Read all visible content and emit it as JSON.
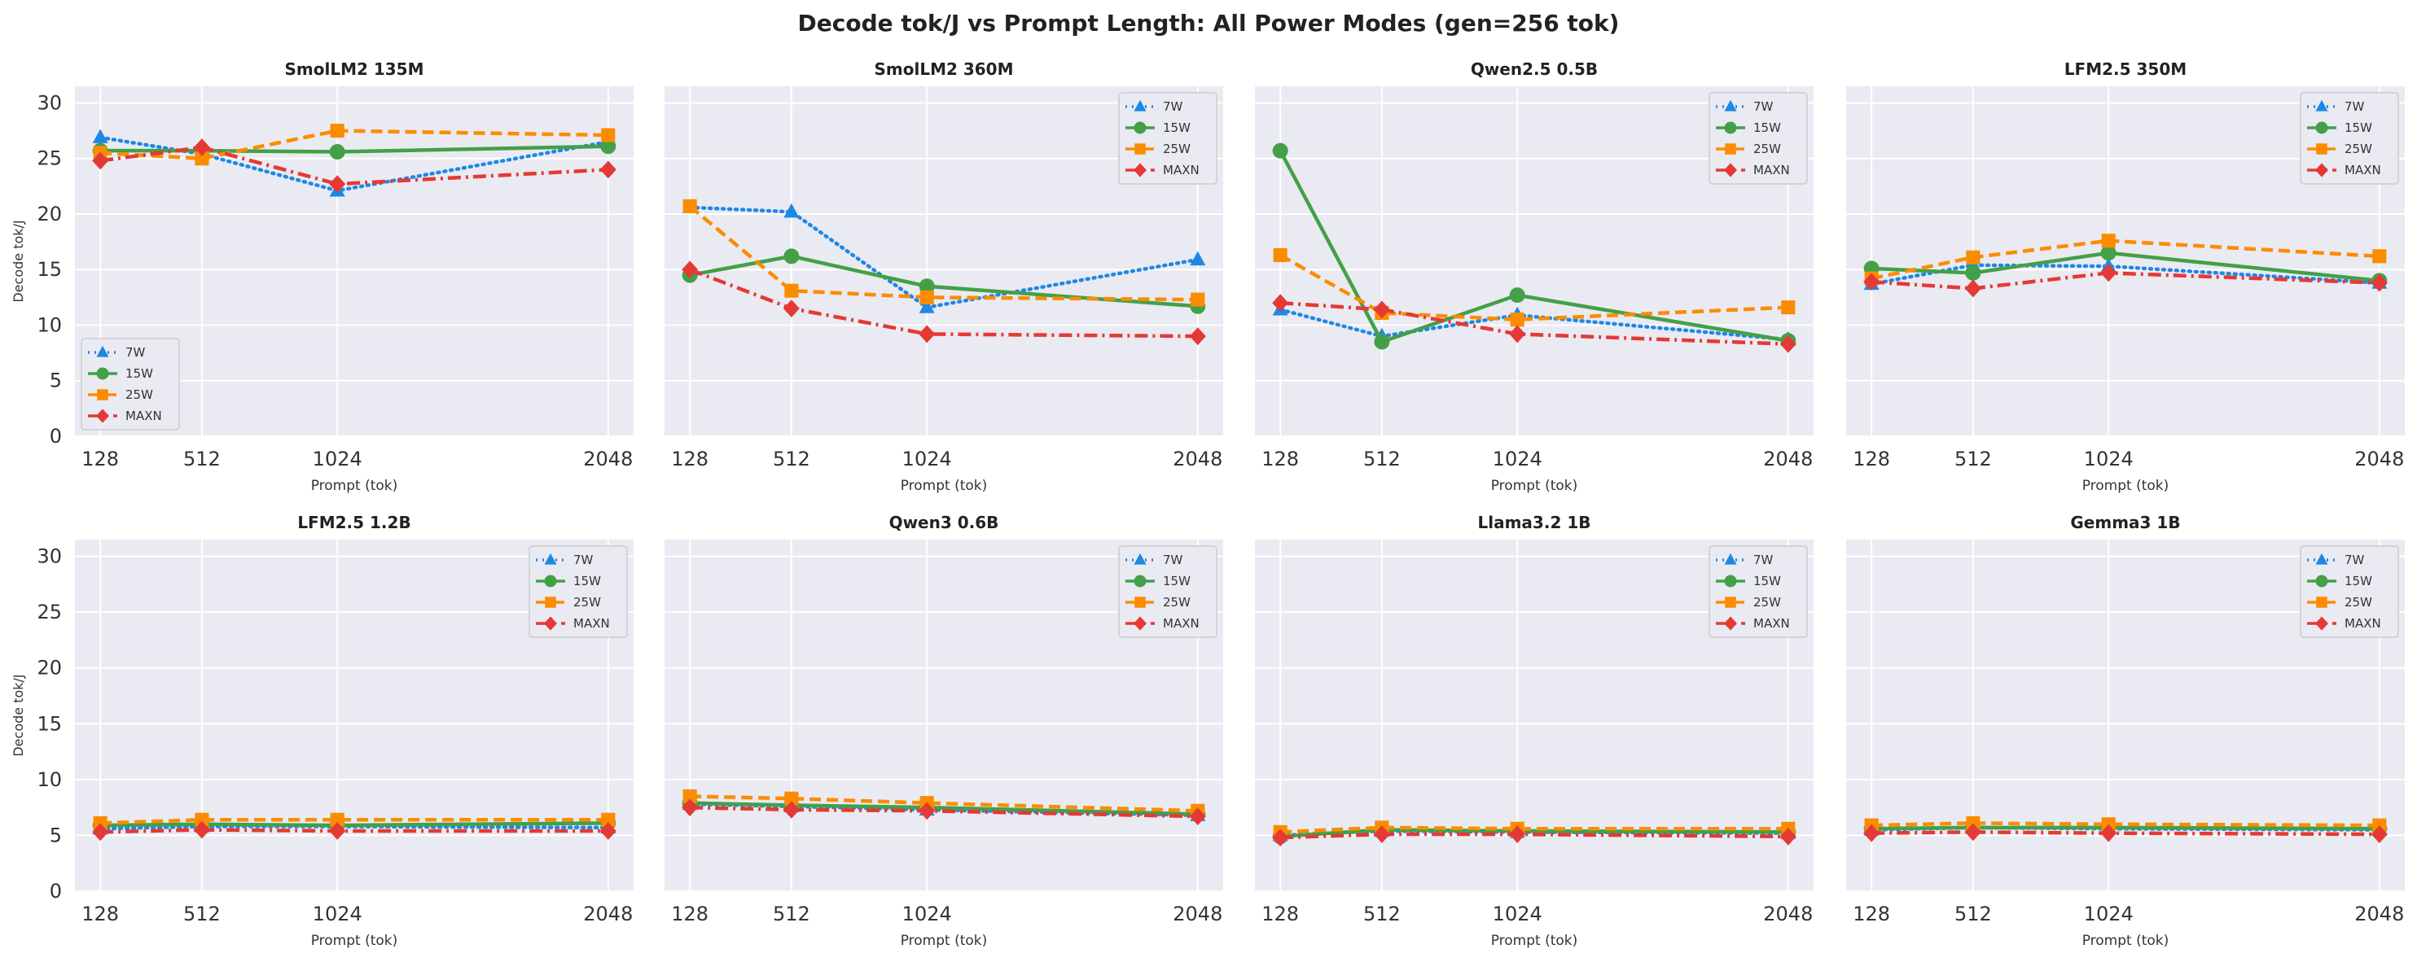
{
  "figure": {
    "title": "Decode tok/J vs Prompt Length: All Power Modes (gen=256 tok)"
  },
  "series_styles": [
    {
      "name": "7W",
      "color": "#1e88e5",
      "marker": "triangle",
      "dash": "dotted"
    },
    {
      "name": "15W",
      "color": "#43a047",
      "marker": "circle",
      "dash": "solid"
    },
    {
      "name": "25W",
      "color": "#fb8c00",
      "marker": "square",
      "dash": "dashed"
    },
    {
      "name": "MAXN",
      "color": "#e53935",
      "marker": "diamond",
      "dash": "dashdot"
    }
  ],
  "chart_data": [
    {
      "type": "line",
      "title": "SmolLM2 135M",
      "xlabel": "Prompt (tok)",
      "ylabel": "Decode tok/J",
      "x": [
        128,
        512,
        1024,
        2048
      ],
      "xticks": [
        "128",
        "512",
        "1024",
        "2048"
      ],
      "ylim": [
        0,
        31.5
      ],
      "yticks": [
        0,
        5,
        10,
        15,
        20,
        25,
        30
      ],
      "grid": true,
      "legend": "lower-left",
      "series": [
        {
          "name": "7W",
          "values": [
            26.9,
            25.4,
            22.1,
            26.5
          ]
        },
        {
          "name": "15W",
          "values": [
            25.7,
            25.7,
            25.6,
            26.1
          ]
        },
        {
          "name": "25W",
          "values": [
            25.5,
            25.0,
            27.5,
            27.1
          ]
        },
        {
          "name": "MAXN",
          "values": [
            24.8,
            26.0,
            22.7,
            24.0
          ]
        }
      ]
    },
    {
      "type": "line",
      "title": "SmolLM2 360M",
      "xlabel": "Prompt (tok)",
      "ylabel": "",
      "x": [
        128,
        512,
        1024,
        2048
      ],
      "xticks": [
        "128",
        "512",
        "1024",
        "2048"
      ],
      "ylim": [
        0,
        31.5
      ],
      "yticks": [
        0,
        5,
        10,
        15,
        20,
        25,
        30
      ],
      "grid": true,
      "legend": "upper-right",
      "series": [
        {
          "name": "7W",
          "values": [
            20.6,
            20.2,
            11.6,
            15.9
          ]
        },
        {
          "name": "15W",
          "values": [
            14.5,
            16.2,
            13.5,
            11.7
          ]
        },
        {
          "name": "25W",
          "values": [
            20.7,
            13.1,
            12.5,
            12.3
          ]
        },
        {
          "name": "MAXN",
          "values": [
            15.0,
            11.5,
            9.2,
            9.0
          ]
        }
      ]
    },
    {
      "type": "line",
      "title": "Qwen2.5 0.5B",
      "xlabel": "Prompt (tok)",
      "ylabel": "",
      "x": [
        128,
        512,
        1024,
        2048
      ],
      "xticks": [
        "128",
        "512",
        "1024",
        "2048"
      ],
      "ylim": [
        0,
        31.5
      ],
      "yticks": [
        0,
        5,
        10,
        15,
        20,
        25,
        30
      ],
      "grid": true,
      "legend": "upper-right",
      "series": [
        {
          "name": "7W",
          "values": [
            11.4,
            9.0,
            10.9,
            8.7
          ]
        },
        {
          "name": "15W",
          "values": [
            25.7,
            8.5,
            12.7,
            8.6
          ]
        },
        {
          "name": "25W",
          "values": [
            16.3,
            11.1,
            10.5,
            11.6
          ]
        },
        {
          "name": "MAXN",
          "values": [
            12.0,
            11.4,
            9.2,
            8.3
          ]
        }
      ]
    },
    {
      "type": "line",
      "title": "LFM2.5 350M",
      "xlabel": "Prompt (tok)",
      "ylabel": "",
      "x": [
        128,
        512,
        1024,
        2048
      ],
      "xticks": [
        "128",
        "512",
        "1024",
        "2048"
      ],
      "ylim": [
        0,
        31.5
      ],
      "yticks": [
        0,
        5,
        10,
        15,
        20,
        25,
        30
      ],
      "grid": true,
      "legend": "upper-right",
      "series": [
        {
          "name": "7W",
          "values": [
            13.7,
            15.4,
            15.3,
            13.8
          ]
        },
        {
          "name": "15W",
          "values": [
            15.1,
            14.7,
            16.5,
            14.0
          ]
        },
        {
          "name": "25W",
          "values": [
            14.2,
            16.1,
            17.6,
            16.2
          ]
        },
        {
          "name": "MAXN",
          "values": [
            13.9,
            13.3,
            14.7,
            13.8
          ]
        }
      ]
    },
    {
      "type": "line",
      "title": "LFM2.5 1.2B",
      "xlabel": "Prompt (tok)",
      "ylabel": "Decode tok/J",
      "x": [
        128,
        512,
        1024,
        2048
      ],
      "xticks": [
        "128",
        "512",
        "1024",
        "2048"
      ],
      "ylim": [
        0,
        31.5
      ],
      "yticks": [
        0,
        5,
        10,
        15,
        20,
        25,
        30
      ],
      "grid": true,
      "legend": "upper-right",
      "series": [
        {
          "name": "7W",
          "values": [
            5.6,
            5.8,
            5.8,
            5.7
          ]
        },
        {
          "name": "15W",
          "values": [
            5.9,
            6.0,
            5.9,
            6.1
          ]
        },
        {
          "name": "25W",
          "values": [
            6.1,
            6.4,
            6.4,
            6.4
          ]
        },
        {
          "name": "MAXN",
          "values": [
            5.3,
            5.5,
            5.4,
            5.4
          ]
        }
      ]
    },
    {
      "type": "line",
      "title": "Qwen3 0.6B",
      "xlabel": "Prompt (tok)",
      "ylabel": "",
      "x": [
        128,
        512,
        1024,
        2048
      ],
      "xticks": [
        "128",
        "512",
        "1024",
        "2048"
      ],
      "ylim": [
        0,
        31.5
      ],
      "yticks": [
        0,
        5,
        10,
        15,
        20,
        25,
        30
      ],
      "grid": true,
      "legend": "upper-right",
      "series": [
        {
          "name": "7W",
          "values": [
            7.8,
            7.6,
            7.3,
            6.8
          ]
        },
        {
          "name": "15W",
          "values": [
            7.9,
            7.7,
            7.5,
            6.9
          ]
        },
        {
          "name": "25W",
          "values": [
            8.5,
            8.3,
            7.9,
            7.2
          ]
        },
        {
          "name": "MAXN",
          "values": [
            7.5,
            7.3,
            7.2,
            6.7
          ]
        }
      ]
    },
    {
      "type": "line",
      "title": "Llama3.2 1B",
      "xlabel": "Prompt (tok)",
      "ylabel": "",
      "x": [
        128,
        512,
        1024,
        2048
      ],
      "xticks": [
        "128",
        "512",
        "1024",
        "2048"
      ],
      "ylim": [
        0,
        31.5
      ],
      "yticks": [
        0,
        5,
        10,
        15,
        20,
        25,
        30
      ],
      "grid": true,
      "legend": "upper-right",
      "series": [
        {
          "name": "7W",
          "values": [
            5.0,
            5.4,
            5.3,
            5.2
          ]
        },
        {
          "name": "15W",
          "values": [
            4.9,
            5.5,
            5.4,
            5.3
          ]
        },
        {
          "name": "25W",
          "values": [
            5.3,
            5.7,
            5.6,
            5.6
          ]
        },
        {
          "name": "MAXN",
          "values": [
            4.8,
            5.1,
            5.1,
            4.9
          ]
        }
      ]
    },
    {
      "type": "line",
      "title": "Gemma3 1B",
      "xlabel": "Prompt (tok)",
      "ylabel": "",
      "x": [
        128,
        512,
        1024,
        2048
      ],
      "xticks": [
        "128",
        "512",
        "1024",
        "2048"
      ],
      "ylim": [
        0,
        31.5
      ],
      "yticks": [
        0,
        5,
        10,
        15,
        20,
        25,
        30
      ],
      "grid": true,
      "legend": "upper-right",
      "series": [
        {
          "name": "7W",
          "values": [
            5.5,
            5.7,
            5.6,
            5.5
          ]
        },
        {
          "name": "15W",
          "values": [
            5.6,
            5.7,
            5.7,
            5.6
          ]
        },
        {
          "name": "25W",
          "values": [
            5.9,
            6.1,
            6.0,
            5.9
          ]
        },
        {
          "name": "MAXN",
          "values": [
            5.2,
            5.3,
            5.2,
            5.1
          ]
        }
      ]
    }
  ]
}
